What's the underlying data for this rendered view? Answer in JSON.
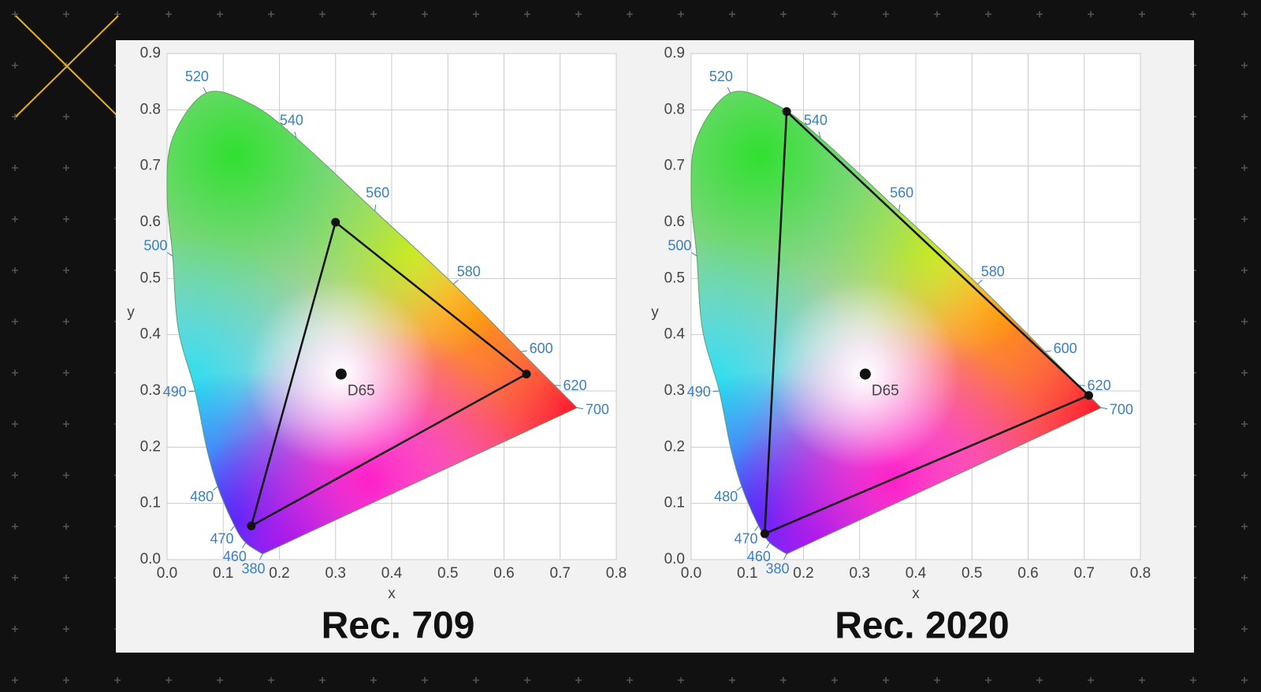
{
  "chart_data": [
    {
      "type": "chromaticity",
      "title": "Rec. 709",
      "x_label": "x",
      "y_label": "y",
      "xlim": [
        0,
        0.8
      ],
      "ylim": [
        0,
        0.9
      ],
      "xticks": [
        {
          "value": 0,
          "label": "0.0"
        },
        0.1,
        0.2,
        0.3,
        0.4,
        0.5,
        0.6,
        0.7,
        0.8
      ],
      "yticks": [
        {
          "value": 0,
          "label": "0.0"
        },
        0.1,
        0.2,
        0.3,
        0.4,
        0.5,
        0.6,
        0.7,
        0.8,
        0.9
      ],
      "grid": true,
      "locus": {
        "labels": [
          "380",
          "460",
          "470",
          "480",
          null,
          "490",
          null,
          "500",
          null,
          null,
          "520",
          null,
          "540",
          "560",
          "580",
          "600",
          "620",
          "700"
        ],
        "x": [
          0.17,
          0.14,
          0.12,
          0.09,
          0.07,
          0.05,
          0.02,
          0.01,
          0.0,
          0.01,
          0.07,
          0.15,
          0.23,
          0.37,
          0.51,
          0.63,
          0.69,
          0.73
        ],
        "y": [
          0.01,
          0.03,
          0.06,
          0.13,
          0.2,
          0.3,
          0.41,
          0.54,
          0.65,
          0.75,
          0.83,
          0.81,
          0.75,
          0.62,
          0.49,
          0.37,
          0.31,
          0.27
        ],
        "color": "#3a7fc0"
      },
      "gamut": {
        "x": [
          0.64,
          0.3,
          0.15
        ],
        "y": [
          0.33,
          0.6,
          0.06
        ],
        "color": "#111111"
      },
      "white_point": {
        "label": "D65",
        "x": 0.31,
        "y": 0.33
      }
    },
    {
      "type": "chromaticity",
      "title": "Rec. 2020",
      "x_label": "x",
      "y_label": "y",
      "xlim": [
        0,
        0.8
      ],
      "ylim": [
        0,
        0.9
      ],
      "xticks": [
        {
          "value": 0,
          "label": "0.0"
        },
        0.1,
        0.2,
        0.3,
        0.4,
        0.5,
        0.6,
        0.7,
        0.8
      ],
      "yticks": [
        {
          "value": 0,
          "label": "0.0"
        },
        0.1,
        0.2,
        0.3,
        0.4,
        0.5,
        0.6,
        0.7,
        0.8,
        0.9
      ],
      "grid": true,
      "locus": {
        "labels": [
          "380",
          "460",
          "470",
          "480",
          null,
          "490",
          null,
          "500",
          null,
          null,
          "520",
          null,
          "540",
          "560",
          "580",
          "600",
          "620",
          "700"
        ],
        "x": [
          0.17,
          0.14,
          0.12,
          0.09,
          0.07,
          0.05,
          0.02,
          0.01,
          0.0,
          0.01,
          0.07,
          0.15,
          0.23,
          0.37,
          0.51,
          0.63,
          0.69,
          0.73
        ],
        "y": [
          0.01,
          0.03,
          0.06,
          0.13,
          0.2,
          0.3,
          0.41,
          0.54,
          0.65,
          0.75,
          0.83,
          0.81,
          0.75,
          0.62,
          0.49,
          0.37,
          0.31,
          0.27
        ],
        "color": "#3a7fc0"
      },
      "gamut": {
        "x": [
          0.708,
          0.17,
          0.131
        ],
        "y": [
          0.292,
          0.797,
          0.046
        ],
        "color": "#111111"
      },
      "white_point": {
        "label": "D65",
        "x": 0.31,
        "y": 0.33
      }
    }
  ]
}
